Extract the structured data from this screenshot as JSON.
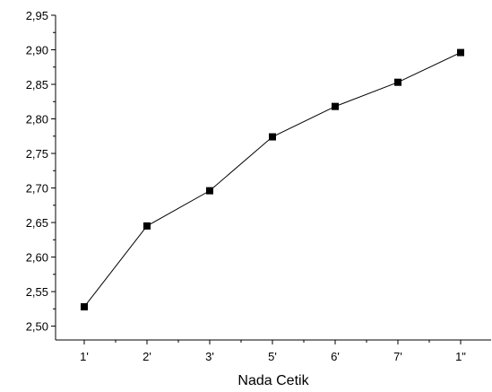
{
  "chart_data": {
    "type": "line",
    "title": "",
    "xlabel": "Nada Cetik",
    "ylabel": "",
    "categories": [
      "1'",
      "2'",
      "3'",
      "5'",
      "6'",
      "7'",
      "1\""
    ],
    "series": [
      {
        "values": [
          2.528,
          2.645,
          2.696,
          2.774,
          2.818,
          2.853,
          2.896
        ],
        "color": "#000000",
        "marker": "square"
      }
    ],
    "ylim": [
      2.48,
      2.95
    ],
    "yticks": [
      2.5,
      2.55,
      2.6,
      2.65,
      2.7,
      2.75,
      2.8,
      2.85,
      2.9,
      2.95
    ],
    "ytick_labels": [
      "2,50",
      "2,55",
      "2,60",
      "2,65",
      "2,70",
      "2,75",
      "2,80",
      "2,85",
      "2,90",
      "2,95"
    ],
    "grid": false,
    "legend": "none"
  }
}
